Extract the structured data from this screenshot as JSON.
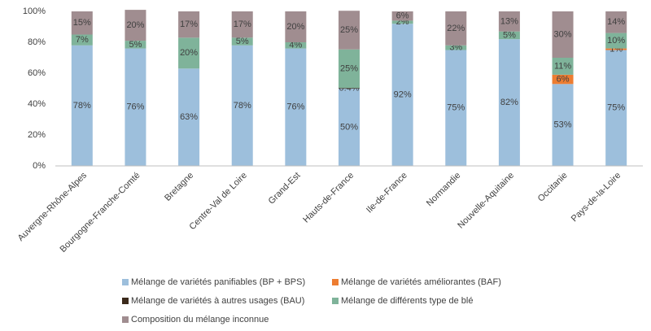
{
  "chart_data": {
    "type": "stacked-bar",
    "categories": [
      "Auvergne-Rhône-Alpes",
      "Bourgogne-Franche-Comté",
      "Bretagne",
      "Centre-Val de Loire",
      "Grand-Est",
      "Hauts-de-France",
      "Ile-de-France",
      "Normandie",
      "Nouvelle-Aquitaine",
      "Occitanie",
      "Pays-de-la-Loire"
    ],
    "series": [
      {
        "name": "Mélange de variétés panifiables (BP + BPS)",
        "color": "#9dbfdc",
        "values": [
          78,
          76,
          63,
          78,
          76,
          50,
          92,
          75,
          82,
          53,
          75
        ],
        "value_labels": [
          "78%",
          "76%",
          "63%",
          "78%",
          "76%",
          "50%",
          "92%",
          "75%",
          "82%",
          "53%",
          "75%"
        ]
      },
      {
        "name": "Mélange de variétés améliorantes (BAF)",
        "color": "#ed7d31",
        "values": [
          null,
          null,
          null,
          null,
          null,
          null,
          null,
          null,
          null,
          6,
          1
        ],
        "value_labels": [
          null,
          null,
          null,
          null,
          null,
          null,
          null,
          null,
          null,
          "6%",
          "1%"
        ]
      },
      {
        "name": "Mélange de variétés à autres usages (BAU)",
        "color": "#3b2a1c",
        "values": [
          null,
          null,
          null,
          null,
          null,
          0.4,
          null,
          null,
          null,
          null,
          null
        ],
        "value_labels": [
          null,
          null,
          null,
          null,
          null,
          "0.4%",
          null,
          null,
          null,
          null,
          null
        ]
      },
      {
        "name": "Mélange de différents type de blé",
        "color": "#7fb39a",
        "values": [
          7,
          5,
          20,
          5,
          4,
          25,
          2,
          3,
          5,
          11,
          10
        ],
        "value_labels": [
          "7%",
          "5%",
          "20%",
          "5%",
          "4%",
          "25%",
          "2%",
          "3%",
          "5%",
          "11%",
          "10%"
        ]
      },
      {
        "name": "Composition du mélange inconnue",
        "color": "#a08d90",
        "values": [
          15,
          20,
          17,
          17,
          20,
          25,
          6,
          22,
          13,
          30,
          14
        ],
        "value_labels": [
          "15%",
          "20%",
          "17%",
          "17%",
          "20%",
          "25%",
          "6%",
          "22%",
          "13%",
          "30%",
          "14%"
        ]
      }
    ],
    "ylim": [
      0,
      100
    ],
    "yticks": [
      {
        "value": 0,
        "label": "0%"
      },
      {
        "value": 20,
        "label": "20%"
      },
      {
        "value": 40,
        "label": "40%"
      },
      {
        "value": 60,
        "label": "60%"
      },
      {
        "value": 80,
        "label": "80%"
      },
      {
        "value": 100,
        "label": "100%"
      }
    ],
    "grid": false
  }
}
